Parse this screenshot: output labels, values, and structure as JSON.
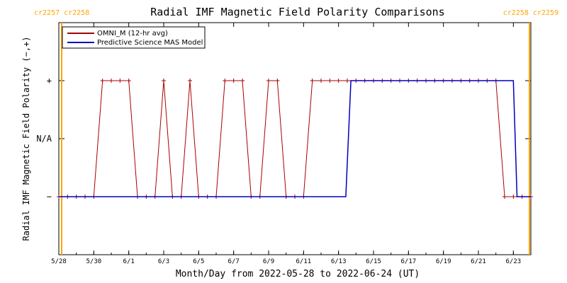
{
  "chart_data": {
    "type": "line",
    "title": "Radial IMF Magnetic Field Polarity Comparisons",
    "xlabel": "Month/Day from 2022-05-28 to 2022-06-24 (UT)",
    "ylabel": "Radial IMF Magnetic Field Polarity (−,+)",
    "x_range": [
      "2022-05-28",
      "2022-06-24"
    ],
    "x_ticks": [
      {
        "label": "5/28",
        "date": "2022-05-28"
      },
      {
        "label": "5/30",
        "date": "2022-05-30"
      },
      {
        "label": "6/1",
        "date": "2022-06-01"
      },
      {
        "label": "6/3",
        "date": "2022-06-03"
      },
      {
        "label": "6/5",
        "date": "2022-06-05"
      },
      {
        "label": "6/7",
        "date": "2022-06-07"
      },
      {
        "label": "6/9",
        "date": "2022-06-09"
      },
      {
        "label": "6/11",
        "date": "2022-06-11"
      },
      {
        "label": "6/13",
        "date": "2022-06-13"
      },
      {
        "label": "6/15",
        "date": "2022-06-15"
      },
      {
        "label": "6/17",
        "date": "2022-06-17"
      },
      {
        "label": "6/19",
        "date": "2022-06-19"
      },
      {
        "label": "6/21",
        "date": "2022-06-21"
      },
      {
        "label": "6/23",
        "date": "2022-06-23"
      }
    ],
    "y_categories": [
      {
        "label": "+",
        "value": 1
      },
      {
        "label": "N/A",
        "value": 0
      },
      {
        "label": "−",
        "value": -1
      }
    ],
    "ylim": [
      -2,
      2
    ],
    "legend_placement": "top-left",
    "grid": false,
    "series": [
      {
        "name": "OMNI_M (12-hr avg)",
        "color": "#aa0000",
        "markers": true,
        "points": [
          [
            "2022-05-28 00:00",
            -1
          ],
          [
            "2022-05-28 12:00",
            -1
          ],
          [
            "2022-05-29 00:00",
            -1
          ],
          [
            "2022-05-29 12:00",
            -1
          ],
          [
            "2022-05-30 00:00",
            -1
          ],
          [
            "2022-05-30 12:00",
            1
          ],
          [
            "2022-05-31 00:00",
            1
          ],
          [
            "2022-05-31 12:00",
            1
          ],
          [
            "2022-06-01 00:00",
            1
          ],
          [
            "2022-06-01 12:00",
            -1
          ],
          [
            "2022-06-02 00:00",
            -1
          ],
          [
            "2022-06-02 12:00",
            -1
          ],
          [
            "2022-06-03 00:00",
            1
          ],
          [
            "2022-06-03 12:00",
            -1
          ],
          [
            "2022-06-04 00:00",
            -1
          ],
          [
            "2022-06-04 12:00",
            1
          ],
          [
            "2022-06-05 00:00",
            -1
          ],
          [
            "2022-06-05 12:00",
            -1
          ],
          [
            "2022-06-06 00:00",
            -1
          ],
          [
            "2022-06-06 12:00",
            1
          ],
          [
            "2022-06-07 00:00",
            1
          ],
          [
            "2022-06-07 12:00",
            1
          ],
          [
            "2022-06-08 00:00",
            -1
          ],
          [
            "2022-06-08 12:00",
            -1
          ],
          [
            "2022-06-09 00:00",
            1
          ],
          [
            "2022-06-09 12:00",
            1
          ],
          [
            "2022-06-10 00:00",
            -1
          ],
          [
            "2022-06-10 12:00",
            -1
          ],
          [
            "2022-06-11 00:00",
            -1
          ],
          [
            "2022-06-11 12:00",
            1
          ],
          [
            "2022-06-12 00:00",
            1
          ],
          [
            "2022-06-12 12:00",
            1
          ],
          [
            "2022-06-13 00:00",
            1
          ],
          [
            "2022-06-13 12:00",
            1
          ],
          [
            "2022-06-14 00:00",
            1
          ],
          [
            "2022-06-14 12:00",
            1
          ],
          [
            "2022-06-15 00:00",
            1
          ],
          [
            "2022-06-15 12:00",
            1
          ],
          [
            "2022-06-16 00:00",
            1
          ],
          [
            "2022-06-16 12:00",
            1
          ],
          [
            "2022-06-17 00:00",
            1
          ],
          [
            "2022-06-17 12:00",
            1
          ],
          [
            "2022-06-18 00:00",
            1
          ],
          [
            "2022-06-18 12:00",
            1
          ],
          [
            "2022-06-19 00:00",
            1
          ],
          [
            "2022-06-19 12:00",
            1
          ],
          [
            "2022-06-20 00:00",
            1
          ],
          [
            "2022-06-20 12:00",
            1
          ],
          [
            "2022-06-21 00:00",
            1
          ],
          [
            "2022-06-21 12:00",
            1
          ],
          [
            "2022-06-22 00:00",
            1
          ],
          [
            "2022-06-22 12:00",
            -1
          ],
          [
            "2022-06-23 00:00",
            -1
          ],
          [
            "2022-06-23 12:00",
            -1
          ],
          [
            "2022-06-24 00:00",
            -1
          ]
        ]
      },
      {
        "name": "Predictive Science MAS Model",
        "color": "#0000c0",
        "markers": false,
        "points": [
          [
            "2022-05-28 00:00",
            -1
          ],
          [
            "2022-06-13 10:00",
            -1
          ],
          [
            "2022-06-13 17:00",
            1
          ],
          [
            "2022-06-23 00:00",
            1
          ],
          [
            "2022-06-23 05:00",
            -1
          ],
          [
            "2022-06-24 00:00",
            -1
          ]
        ]
      }
    ],
    "carrington_markers": [
      {
        "left_label": "cr2257",
        "right_label": "cr2258",
        "date": "2022-05-28 00:00",
        "color": "#ffa500"
      },
      {
        "left_label": "cr2258",
        "right_label": "cr2259",
        "date": "2022-06-24 00:00",
        "color": "#ffa500"
      }
    ]
  }
}
